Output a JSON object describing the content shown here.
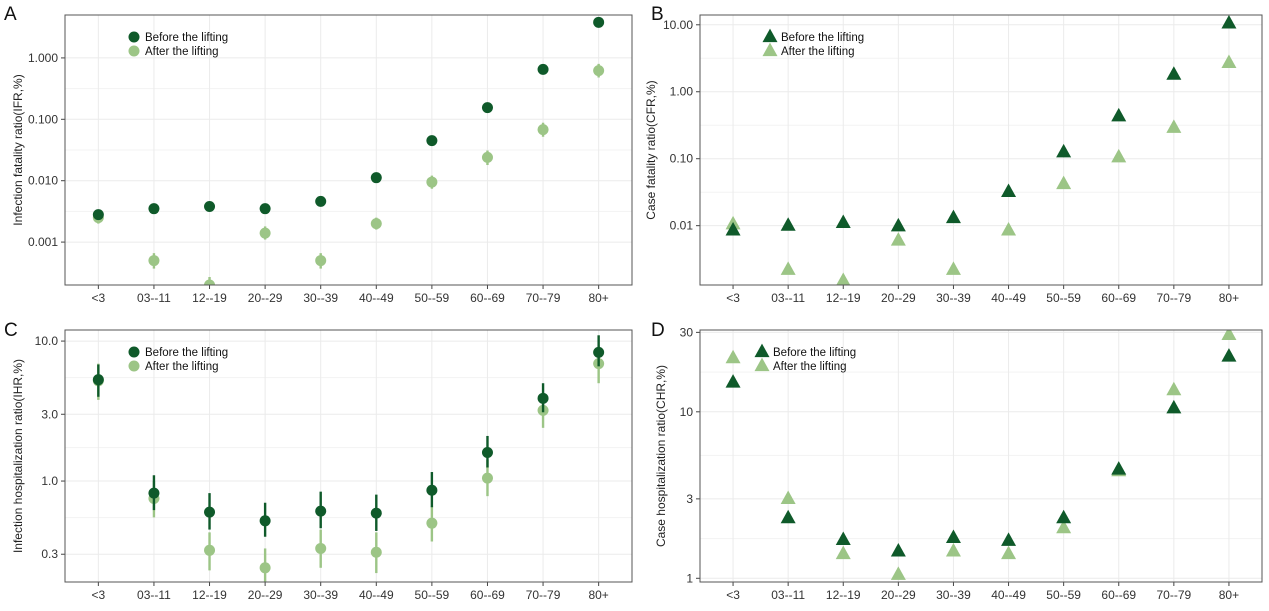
{
  "colors": {
    "before": "#0f5a2a",
    "after": "#9cc586"
  },
  "legend": {
    "before": "Before the lifting",
    "after": "After the lifting"
  },
  "chart_data": [
    {
      "panel": "A",
      "type": "scatter",
      "marker": "circle",
      "scale": "log10",
      "ylabel": "Infection fatality ratio(IFR,%)",
      "categories": [
        "<3",
        "03--11",
        "12--19",
        "20--29",
        "30--39",
        "40--49",
        "50--59",
        "60--69",
        "70--79",
        "80+"
      ],
      "ylim": [
        0.0002,
        5
      ],
      "yticks": [
        0.001,
        0.01,
        0.1,
        1
      ],
      "yticklabels": [
        "0.001",
        "0.010",
        "0.100",
        "1.000"
      ],
      "legend_position": "top-left",
      "series": [
        {
          "name": "Before the lifting",
          "values": [
            0.0028,
            0.0035,
            0.0038,
            0.0035,
            0.0046,
            0.0112,
            0.045,
            0.155,
            0.65,
            3.8
          ],
          "lower": [
            0.0025,
            0.0031,
            0.0034,
            0.0031,
            0.0041,
            0.0099,
            0.04,
            0.135,
            0.56,
            3.3
          ],
          "upper": [
            0.0031,
            0.0039,
            0.0043,
            0.004,
            0.0052,
            0.0128,
            0.052,
            0.18,
            0.76,
            4.4
          ]
        },
        {
          "name": "After the lifting",
          "values": [
            0.0025,
            0.0005,
            0.0002,
            0.0014,
            0.0005,
            0.002,
            0.0095,
            0.024,
            0.068,
            0.62
          ],
          "lower": [
            0.002,
            0.00037,
            0.00015,
            0.0011,
            0.00037,
            0.0016,
            0.0074,
            0.018,
            0.052,
            0.48
          ],
          "upper": [
            0.0031,
            0.00066,
            0.00027,
            0.0018,
            0.00066,
            0.0025,
            0.0121,
            0.031,
            0.088,
            0.8
          ]
        }
      ]
    },
    {
      "panel": "B",
      "type": "scatter",
      "marker": "triangle",
      "scale": "log10",
      "ylabel": "Case fatality ratio(CFR,%)",
      "categories": [
        "<3",
        "03--11",
        "12--19",
        "20--29",
        "30--39",
        "40--49",
        "50--59",
        "60--69",
        "70--79",
        "80+"
      ],
      "ylim": [
        0.0013,
        14
      ],
      "yticks": [
        0.01,
        0.1,
        1,
        10
      ],
      "yticklabels": [
        "0.01",
        "0.10",
        "1.00",
        "10.00"
      ],
      "legend_position": "top-left",
      "series": [
        {
          "name": "Before the lifting",
          "values": [
            0.0085,
            0.01,
            0.011,
            0.0098,
            0.013,
            0.032,
            0.125,
            0.43,
            1.8,
            10.5
          ]
        },
        {
          "name": "After the lifting",
          "values": [
            0.0105,
            0.0022,
            0.0015,
            0.006,
            0.0022,
            0.0085,
            0.042,
            0.105,
            0.29,
            2.7
          ]
        }
      ]
    },
    {
      "panel": "C",
      "type": "scatter",
      "marker": "circle",
      "scale": "log10",
      "ylabel": "Infection hospitalization ratio(IHR,%)",
      "categories": [
        "<3",
        "03--11",
        "12--19",
        "20--29",
        "30--39",
        "40--49",
        "50--59",
        "60--69",
        "70--79",
        "80+"
      ],
      "ylim": [
        0.19,
        12
      ],
      "yticks": [
        0.3,
        1,
        3,
        10
      ],
      "yticklabels": [
        "0.3",
        "1.0",
        "3.0",
        "10.0"
      ],
      "legend_position": "top-left",
      "series": [
        {
          "name": "Before the lifting",
          "values": [
            5.3,
            0.82,
            0.6,
            0.52,
            0.61,
            0.59,
            0.86,
            1.6,
            3.9,
            8.3
          ],
          "lower": [
            4.0,
            0.62,
            0.45,
            0.4,
            0.46,
            0.44,
            0.65,
            1.25,
            3.1,
            6.6
          ],
          "upper": [
            6.8,
            1.1,
            0.82,
            0.7,
            0.84,
            0.8,
            1.16,
            2.1,
            5.0,
            11.0
          ]
        },
        {
          "name": "After the lifting",
          "values": [
            5.2,
            0.75,
            0.32,
            0.24,
            0.33,
            0.31,
            0.5,
            1.05,
            3.2,
            6.9
          ],
          "lower": [
            3.8,
            0.55,
            0.23,
            0.18,
            0.24,
            0.22,
            0.37,
            0.78,
            2.4,
            5.0
          ],
          "upper": [
            6.9,
            1.0,
            0.43,
            0.33,
            0.45,
            0.43,
            0.66,
            1.42,
            4.3,
            9.3
          ]
        }
      ]
    },
    {
      "panel": "D",
      "type": "scatter",
      "marker": "triangle",
      "scale": "log10",
      "ylabel": "Case hospitalization ratio(CHR,%)",
      "categories": [
        "<3",
        "03--11",
        "12--19",
        "20--29",
        "30--39",
        "40--49",
        "50--59",
        "60--69",
        "70--79",
        "80+"
      ],
      "ylim": [
        0.95,
        31
      ],
      "yticks": [
        1,
        3,
        10,
        30
      ],
      "yticklabels": [
        "1",
        "3",
        "10",
        "30"
      ],
      "legend_position": "top-left",
      "series": [
        {
          "name": "Before the lifting",
          "values": [
            15,
            2.3,
            1.7,
            1.45,
            1.75,
            1.68,
            2.3,
            4.5,
            10.5,
            21.5
          ]
        },
        {
          "name": "After the lifting",
          "values": [
            21,
            3.0,
            1.4,
            1.05,
            1.45,
            1.4,
            2.0,
            4.4,
            13.5,
            29
          ]
        }
      ]
    }
  ]
}
